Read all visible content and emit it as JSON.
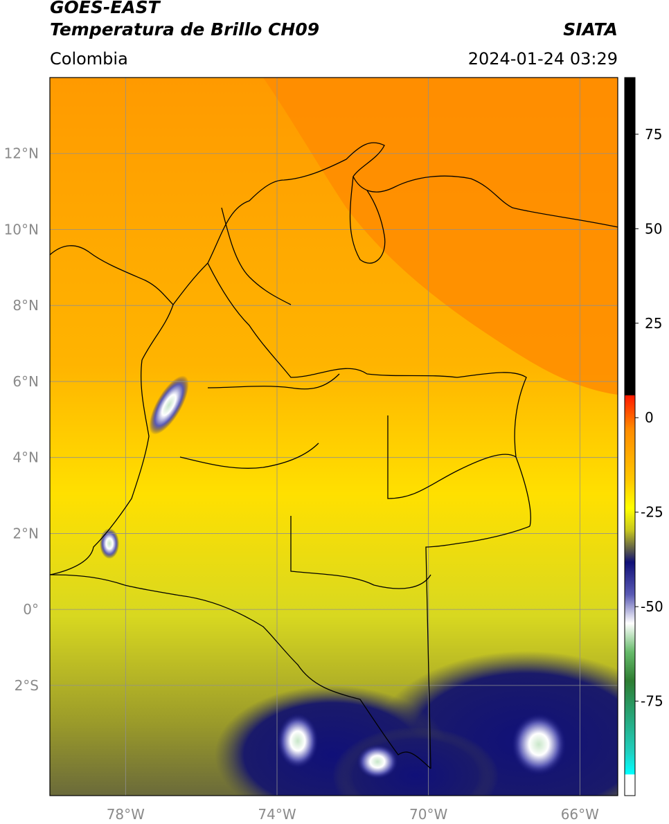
{
  "header": {
    "satellite": "GOES-EAST",
    "product": "Temperatura de Brillo CH09",
    "brand": "SIATA",
    "region": "Colombia",
    "timestamp": "2024-01-24 03:29"
  },
  "map": {
    "lat_range": [
      -4.9,
      14.0
    ],
    "lon_range": [
      -80.0,
      -65.0
    ],
    "lat_ticks": [
      {
        "value": 12,
        "label": "12°N"
      },
      {
        "value": 10,
        "label": "10°N"
      },
      {
        "value": 8,
        "label": "8°N"
      },
      {
        "value": 6,
        "label": "6°N"
      },
      {
        "value": 4,
        "label": "4°N"
      },
      {
        "value": 2,
        "label": "2°N"
      },
      {
        "value": 0,
        "label": "0°"
      },
      {
        "value": -2,
        "label": "2°S"
      }
    ],
    "lon_ticks": [
      {
        "value": -78,
        "label": "78°W"
      },
      {
        "value": -74,
        "label": "74°W"
      },
      {
        "value": -70,
        "label": "70°W"
      },
      {
        "value": -66,
        "label": "66°W"
      }
    ],
    "gridlines": true
  },
  "colorbar": {
    "range": [
      -100,
      90
    ],
    "ticks": [
      {
        "value": 75,
        "label": "75"
      },
      {
        "value": 50,
        "label": "50"
      },
      {
        "value": 25,
        "label": "25"
      },
      {
        "value": 0,
        "label": "0"
      },
      {
        "value": -25,
        "label": "-25"
      },
      {
        "value": -50,
        "label": "-50"
      },
      {
        "value": -75,
        "label": "-75"
      }
    ],
    "colors": {
      "black": "#000000",
      "red": "#ff1a00",
      "orange": "#ff8c00",
      "yellow": "#ffff00",
      "olive": "#c8c81e",
      "gray": "#505050",
      "navy": "#101078",
      "white": "#ffffff",
      "green": "#2e7d32",
      "teal": "#20d0c0",
      "cyan": "#00ffff"
    }
  }
}
